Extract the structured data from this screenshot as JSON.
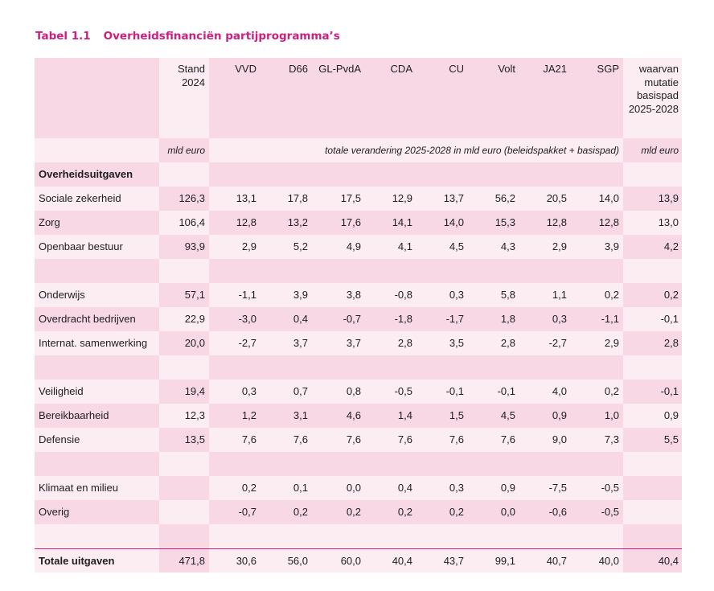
{
  "caption": {
    "number": "Tabel 1.1",
    "title": "Overheidsfinanciën partijprogramma’s"
  },
  "colors": {
    "accent": "#cc1f7f",
    "row_dark": "#f8d8e5",
    "row_light": "#fcedf3"
  },
  "header": {
    "columns": [
      "Stand 2024",
      "VVD",
      "D66",
      "GL-PvdA",
      "CDA",
      "CU",
      "Volt",
      "JA21",
      "SGP",
      "waarvan mutatie basispad 2025-2028"
    ]
  },
  "units": {
    "stand": "mld euro",
    "changes": "totale verandering 2025-2028 in mld euro (beleidspakket + basispad)",
    "mutation": "mld euro"
  },
  "rows": [
    {
      "label": "Overheidsuitgaven",
      "values": [
        "",
        "",
        "",
        "",
        "",
        "",
        "",
        "",
        "",
        ""
      ]
    },
    {
      "label": "Sociale zekerheid",
      "values": [
        "126,3",
        "13,1",
        "17,8",
        "17,5",
        "12,9",
        "13,7",
        "56,2",
        "20,5",
        "14,0",
        "13,9"
      ]
    },
    {
      "label": "Zorg",
      "values": [
        "106,4",
        "12,8",
        "13,2",
        "17,6",
        "14,1",
        "14,0",
        "15,3",
        "12,8",
        "12,8",
        "13,0"
      ]
    },
    {
      "label": "Openbaar bestuur",
      "values": [
        "93,9",
        "2,9",
        "5,2",
        "4,9",
        "4,1",
        "4,5",
        "4,3",
        "2,9",
        "3,9",
        "4,2"
      ]
    },
    {
      "label": "",
      "values": [
        "",
        "",
        "",
        "",
        "",
        "",
        "",
        "",
        "",
        ""
      ]
    },
    {
      "label": "Onderwijs",
      "values": [
        "57,1",
        "-1,1",
        "3,9",
        "3,8",
        "-0,8",
        "0,3",
        "5,8",
        "1,1",
        "0,2",
        "0,2"
      ]
    },
    {
      "label": "Overdracht bedrijven",
      "values": [
        "22,9",
        "-3,0",
        "0,4",
        "-0,7",
        "-1,8",
        "-1,7",
        "1,8",
        "0,3",
        "-1,1",
        "-0,1"
      ]
    },
    {
      "label": "Internat. samenwerking",
      "values": [
        "20,0",
        "-2,7",
        "3,7",
        "3,7",
        "2,8",
        "3,5",
        "2,8",
        "-2,7",
        "2,9",
        "2,8"
      ]
    },
    {
      "label": "",
      "values": [
        "",
        "",
        "",
        "",
        "",
        "",
        "",
        "",
        "",
        ""
      ]
    },
    {
      "label": "Veiligheid",
      "values": [
        "19,4",
        "0,3",
        "0,7",
        "0,8",
        "-0,5",
        "-0,1",
        "-0,1",
        "4,0",
        "0,2",
        "-0,1"
      ]
    },
    {
      "label": "Bereikbaarheid",
      "values": [
        "12,3",
        "1,2",
        "3,1",
        "4,6",
        "1,4",
        "1,5",
        "4,5",
        "0,9",
        "1,0",
        "0,9"
      ]
    },
    {
      "label": "Defensie",
      "values": [
        "13,5",
        "7,6",
        "7,6",
        "7,6",
        "7,6",
        "7,6",
        "7,6",
        "9,0",
        "7,3",
        "5,5"
      ]
    },
    {
      "label": "",
      "values": [
        "",
        "",
        "",
        "",
        "",
        "",
        "",
        "",
        "",
        ""
      ]
    },
    {
      "label": "Klimaat en milieu",
      "values": [
        "",
        "0,2",
        "0,1",
        "0,0",
        "0,4",
        "0,3",
        "0,9",
        "-7,5",
        "-0,5",
        ""
      ]
    },
    {
      "label": "Overig",
      "values": [
        "",
        "-0,7",
        "0,2",
        "0,2",
        "0,2",
        "0,2",
        "0,0",
        "-0,6",
        "-0,5",
        ""
      ]
    },
    {
      "label": "",
      "values": [
        "",
        "",
        "",
        "",
        "",
        "",
        "",
        "",
        "",
        ""
      ]
    }
  ],
  "total": {
    "label": "Totale uitgaven",
    "values": [
      "471,8",
      "30,6",
      "56,0",
      "60,0",
      "40,4",
      "43,7",
      "99,1",
      "40,7",
      "40,0",
      "40,4"
    ]
  }
}
